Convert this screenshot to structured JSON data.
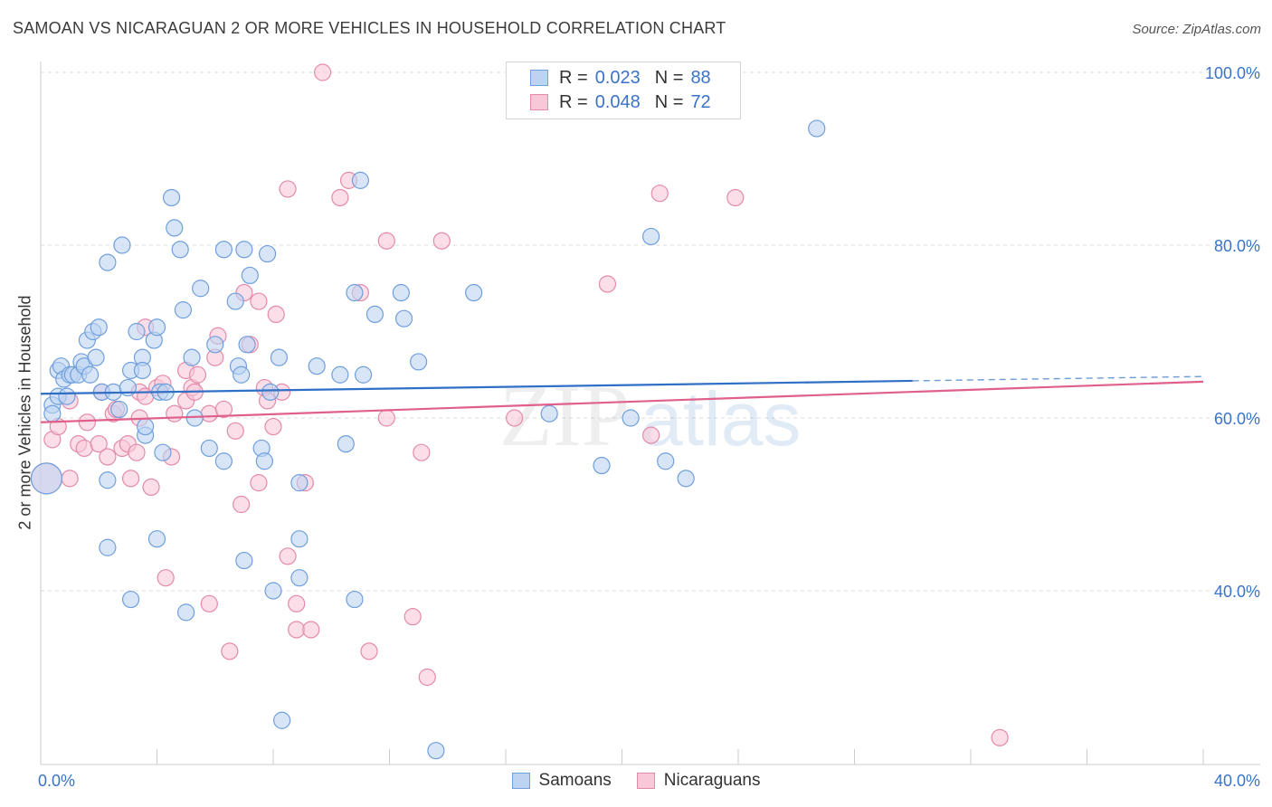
{
  "header": {
    "title": "SAMOAN VS NICARAGUAN 2 OR MORE VEHICLES IN HOUSEHOLD CORRELATION CHART",
    "source": "Source: ZipAtlas.com"
  },
  "watermark": {
    "zip": "ZIP",
    "atlas": "atlas"
  },
  "colors": {
    "samoans_fill": "#bcd4f2",
    "samoans_stroke": "#6f9fdc",
    "samoans_line": "#2f6fc6",
    "nicaraguans_fill": "#f8c8d8",
    "nicaraguans_stroke": "#e48aaa",
    "nicaraguans_line": "#e0608c",
    "axis_label": "#3a73c8",
    "grid": "#dddddd"
  },
  "legend": {
    "rows": [
      {
        "r_label": "R =",
        "r_value": "0.023",
        "n_label": "N =",
        "n_value": "88"
      },
      {
        "r_label": "R =",
        "r_value": "0.048",
        "n_label": "N =",
        "n_value": "72"
      }
    ]
  },
  "bottom_legend": {
    "samoans": "Samoans",
    "nicaraguans": "Nicaraguans"
  },
  "chart_data": {
    "type": "scatter",
    "xlabel": "",
    "ylabel": "2 or more Vehicles in Household",
    "xlim": [
      0,
      40
    ],
    "ylim": [
      20,
      104
    ],
    "x_tick_labels": [
      "0.0%",
      "40.0%"
    ],
    "y_ticks": [
      40,
      60,
      80,
      100
    ],
    "y_tick_labels": [
      "40.0%",
      "60.0%",
      "80.0%",
      "100.0%"
    ],
    "grid": true,
    "series": [
      {
        "name": "Samoans",
        "trend": {
          "x": [
            0,
            40
          ],
          "y": [
            62.8,
            64.8
          ],
          "solid_until": 30
        },
        "points": [
          [
            0.2,
            53
          ],
          [
            0.4,
            61.5
          ],
          [
            0.4,
            60.5
          ],
          [
            0.6,
            62.5
          ],
          [
            0.6,
            65.5
          ],
          [
            0.7,
            66
          ],
          [
            0.8,
            64.5
          ],
          [
            0.9,
            62.5
          ],
          [
            1.0,
            65
          ],
          [
            1.1,
            65
          ],
          [
            1.3,
            65
          ],
          [
            1.4,
            66.5
          ],
          [
            1.5,
            66
          ],
          [
            1.6,
            69
          ],
          [
            1.7,
            65
          ],
          [
            1.8,
            70
          ],
          [
            1.9,
            67
          ],
          [
            2.0,
            70.5
          ],
          [
            2.1,
            63
          ],
          [
            2.3,
            78
          ],
          [
            2.5,
            63
          ],
          [
            2.7,
            61
          ],
          [
            2.8,
            80
          ],
          [
            3.0,
            63.5
          ],
          [
            3.1,
            65.5
          ],
          [
            3.3,
            70
          ],
          [
            3.5,
            67
          ],
          [
            3.5,
            65.5
          ],
          [
            3.6,
            58
          ],
          [
            3.6,
            59
          ],
          [
            3.9,
            69
          ],
          [
            4.0,
            70.5
          ],
          [
            4.1,
            63
          ],
          [
            4.2,
            56
          ],
          [
            4.3,
            63
          ],
          [
            4.5,
            85.5
          ],
          [
            4.6,
            82
          ],
          [
            4.8,
            79.5
          ],
          [
            4.9,
            72.5
          ],
          [
            5.2,
            67
          ],
          [
            5.3,
            60
          ],
          [
            5.5,
            75
          ],
          [
            5.8,
            56.5
          ],
          [
            6.0,
            68.5
          ],
          [
            6.3,
            55
          ],
          [
            6.3,
            79.5
          ],
          [
            6.7,
            73.5
          ],
          [
            6.8,
            66
          ],
          [
            6.9,
            65
          ],
          [
            7.0,
            79.5
          ],
          [
            7.1,
            68.5
          ],
          [
            7.2,
            76.5
          ],
          [
            7.6,
            56.5
          ],
          [
            7.7,
            55
          ],
          [
            7.8,
            79
          ],
          [
            7.9,
            63
          ],
          [
            8.2,
            67
          ],
          [
            8.9,
            52.5
          ],
          [
            9.5,
            66
          ],
          [
            10.3,
            65
          ],
          [
            10.5,
            57
          ],
          [
            10.8,
            74.5
          ],
          [
            11.0,
            87.5
          ],
          [
            11.1,
            65
          ],
          [
            11.5,
            72
          ],
          [
            12.4,
            74.5
          ],
          [
            12.5,
            71.5
          ],
          [
            13.0,
            66.5
          ],
          [
            14.9,
            74.5
          ],
          [
            17.5,
            60.5
          ],
          [
            19.3,
            54.5
          ],
          [
            20.3,
            60
          ],
          [
            21.0,
            81
          ],
          [
            21.5,
            55
          ],
          [
            22.2,
            53
          ],
          [
            26.7,
            93.5
          ],
          [
            2.3,
            52.8
          ],
          [
            2.3,
            45
          ],
          [
            4.0,
            46
          ],
          [
            3.1,
            39
          ],
          [
            5.0,
            37.5
          ],
          [
            7.0,
            43.5
          ],
          [
            8.0,
            40
          ],
          [
            8.9,
            41.5
          ],
          [
            8.9,
            46
          ],
          [
            10.8,
            39
          ],
          [
            8.3,
            25
          ],
          [
            13.6,
            21.5
          ]
        ]
      },
      {
        "name": "Nicaraguans",
        "trend": {
          "x": [
            0,
            40
          ],
          "y": [
            59.5,
            64.2
          ]
        },
        "points": [
          [
            0.2,
            53
          ],
          [
            0.4,
            57.5
          ],
          [
            0.6,
            59
          ],
          [
            1.0,
            62
          ],
          [
            1.0,
            53
          ],
          [
            1.3,
            57
          ],
          [
            1.5,
            56.5
          ],
          [
            1.6,
            59.5
          ],
          [
            2.0,
            57
          ],
          [
            2.1,
            63
          ],
          [
            2.3,
            55.5
          ],
          [
            2.5,
            60.5
          ],
          [
            2.6,
            61
          ],
          [
            2.8,
            56.5
          ],
          [
            3.0,
            57
          ],
          [
            3.1,
            53
          ],
          [
            3.3,
            56
          ],
          [
            3.4,
            63
          ],
          [
            3.4,
            60
          ],
          [
            3.6,
            70.5
          ],
          [
            3.6,
            62.5
          ],
          [
            3.8,
            52
          ],
          [
            4.0,
            63.5
          ],
          [
            4.2,
            64
          ],
          [
            4.5,
            55.5
          ],
          [
            4.6,
            60.5
          ],
          [
            5.0,
            62
          ],
          [
            5.0,
            65.5
          ],
          [
            5.2,
            63.5
          ],
          [
            5.3,
            63
          ],
          [
            5.4,
            65
          ],
          [
            5.8,
            60.5
          ],
          [
            6.0,
            67
          ],
          [
            6.1,
            69.5
          ],
          [
            6.3,
            61
          ],
          [
            6.7,
            58.5
          ],
          [
            6.9,
            50
          ],
          [
            7.0,
            74.5
          ],
          [
            7.2,
            68.5
          ],
          [
            7.5,
            73.5
          ],
          [
            7.5,
            52.5
          ],
          [
            7.7,
            63.5
          ],
          [
            7.8,
            62
          ],
          [
            8.0,
            59
          ],
          [
            8.1,
            72
          ],
          [
            8.3,
            63
          ],
          [
            8.5,
            86.5
          ],
          [
            9.1,
            52.5
          ],
          [
            10.3,
            85.5
          ],
          [
            10.6,
            87.5
          ],
          [
            11.0,
            74.5
          ],
          [
            11.9,
            80.5
          ],
          [
            11.9,
            60
          ],
          [
            13.1,
            56
          ],
          [
            13.8,
            80.5
          ],
          [
            16.3,
            60
          ],
          [
            19.5,
            75.5
          ],
          [
            21.0,
            58
          ],
          [
            21.3,
            86
          ],
          [
            23.9,
            85.5
          ],
          [
            4.3,
            41.5
          ],
          [
            5.8,
            38.5
          ],
          [
            6.5,
            33
          ],
          [
            8.5,
            44
          ],
          [
            8.8,
            35.5
          ],
          [
            8.8,
            38.5
          ],
          [
            9.3,
            35.5
          ],
          [
            11.3,
            33
          ],
          [
            12.8,
            37
          ],
          [
            13.3,
            30
          ],
          [
            33.0,
            23
          ],
          [
            9.7,
            100
          ]
        ]
      }
    ]
  }
}
